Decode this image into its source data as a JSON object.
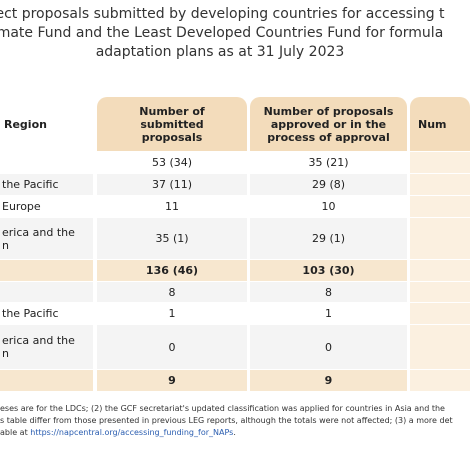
{
  "title": {
    "lines": [
      "ect proposals submitted by developing countries for accessing t",
      "mate Fund and the Least Developed Countries Fund for formula",
      "adaptation plans as at 31 July 2023"
    ]
  },
  "table": {
    "header": [
      "Region",
      "Number of submitted proposals",
      "Number of proposals approved or in the process of approval",
      "Num"
    ],
    "rows": [
      [
        null,
        "53 (34)",
        "35 (21)"
      ],
      [
        "the Pacific",
        "37 (11)",
        "29 (8)"
      ],
      [
        "Europe",
        "11",
        "10"
      ],
      [
        "erica and the\nn",
        "35 (1)",
        "29 (1)"
      ],
      [
        null,
        "136 (46)",
        "103 (30)"
      ],
      [
        null,
        "8",
        "8"
      ],
      [
        "the Pacific",
        "1",
        "1"
      ],
      [
        "erica and the\nn",
        "0",
        "0"
      ],
      [
        null,
        "9",
        "9"
      ]
    ]
  },
  "footnote": {
    "lines": [
      "eses are for the LDCs; (2) the GCF secretariat's updated classification was applied for countries in Asia and the",
      "s table differ from those presented in previous LEG reports, although the totals were not affected; (3) a more det"
    ],
    "prefix": "able at ",
    "link": "https://napcentral.org/accessing_funding_for_NAPs",
    "suffix": "."
  }
}
